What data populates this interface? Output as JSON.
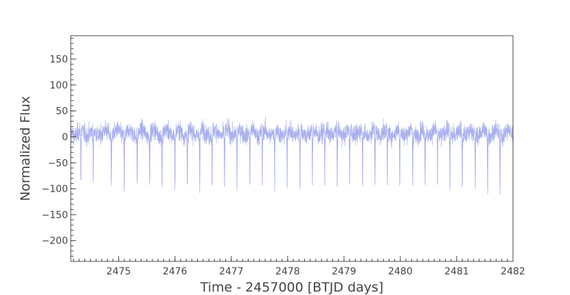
{
  "chart_data": {
    "type": "line",
    "title": "",
    "xlabel": "Time - 2457000 [BTJD days]",
    "ylabel": "Normalized Flux",
    "xlim": [
      2474.15,
      2482.0
    ],
    "ylim": [
      -240,
      195
    ],
    "xticks": [
      2475,
      2476,
      2477,
      2478,
      2479,
      2480,
      2481,
      2482
    ],
    "yticks": [
      -200,
      -150,
      -100,
      -50,
      0,
      50,
      100,
      150
    ],
    "xtick_labels": [
      "2475",
      "2476",
      "2477",
      "2478",
      "2479",
      "2480",
      "2481",
      "2482"
    ],
    "ytick_labels": [
      "−200",
      "−150",
      "−100",
      "−50",
      "0",
      "50",
      "100",
      "150"
    ],
    "grid": false,
    "colors": {
      "series": "#aab0ee",
      "axis": "#444444"
    },
    "series": [
      {
        "baseline_range": [
          -15,
          30
        ],
        "dips_x": [
          2474.33,
          2474.55,
          2474.87,
          2475.1,
          2475.33,
          2475.55,
          2475.77,
          2476.0,
          2476.22,
          2476.44,
          2476.66,
          2476.88,
          2477.1,
          2477.33,
          2477.55,
          2477.77,
          2477.99,
          2478.22,
          2478.44,
          2478.66,
          2478.88,
          2479.1,
          2479.33,
          2479.55,
          2479.77,
          2479.99,
          2480.22,
          2480.44,
          2480.66,
          2480.88,
          2481.1,
          2481.33,
          2481.55,
          2481.77
        ],
        "dips_y": [
          -82,
          -86,
          -88,
          -100,
          -85,
          -87,
          -90,
          -88,
          -92,
          -93,
          -90,
          -96,
          -97,
          -92,
          -94,
          -92,
          -94,
          -96,
          -93,
          -93,
          -95,
          -92,
          -92,
          -92,
          -93,
          -91,
          -94,
          -92,
          -91,
          -97,
          -96,
          -92,
          -97,
          -100
        ]
      }
    ]
  }
}
